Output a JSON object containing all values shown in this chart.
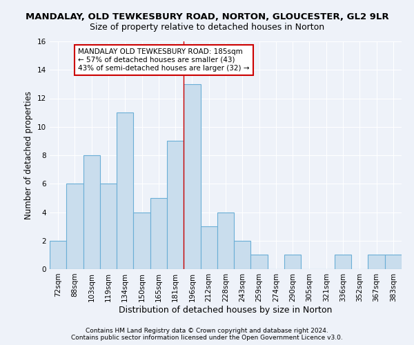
{
  "title": "MANDALAY, OLD TEWKESBURY ROAD, NORTON, GLOUCESTER, GL2 9LR",
  "subtitle": "Size of property relative to detached houses in Norton",
  "xlabel": "Distribution of detached houses by size in Norton",
  "ylabel": "Number of detached properties",
  "categories": [
    "72sqm",
    "88sqm",
    "103sqm",
    "119sqm",
    "134sqm",
    "150sqm",
    "165sqm",
    "181sqm",
    "196sqm",
    "212sqm",
    "228sqm",
    "243sqm",
    "259sqm",
    "274sqm",
    "290sqm",
    "305sqm",
    "321sqm",
    "336sqm",
    "352sqm",
    "367sqm",
    "383sqm"
  ],
  "values": [
    2,
    6,
    8,
    6,
    11,
    4,
    5,
    9,
    13,
    3,
    4,
    2,
    1,
    0,
    1,
    0,
    0,
    1,
    0,
    1,
    1
  ],
  "bar_color": "#c9dded",
  "bar_edge_color": "#6aaed6",
  "ylim": [
    0,
    16
  ],
  "yticks": [
    0,
    2,
    4,
    6,
    8,
    10,
    12,
    14,
    16
  ],
  "annotation_text": "MANDALAY OLD TEWKESBURY ROAD: 185sqm\n← 57% of detached houses are smaller (43)\n43% of semi-detached houses are larger (32) →",
  "annotation_box_color": "#ffffff",
  "annotation_box_edge_color": "#cc0000",
  "property_line_x": 7.5,
  "property_line_color": "#cc0000",
  "footnote1": "Contains HM Land Registry data © Crown copyright and database right 2024.",
  "footnote2": "Contains public sector information licensed under the Open Government Licence v3.0.",
  "background_color": "#eef2f9",
  "grid_color": "#ffffff",
  "title_fontsize": 9.5,
  "subtitle_fontsize": 9,
  "tick_fontsize": 7.5,
  "ylabel_fontsize": 8.5,
  "xlabel_fontsize": 9,
  "annotation_fontsize": 7.5,
  "footnote_fontsize": 6.5
}
